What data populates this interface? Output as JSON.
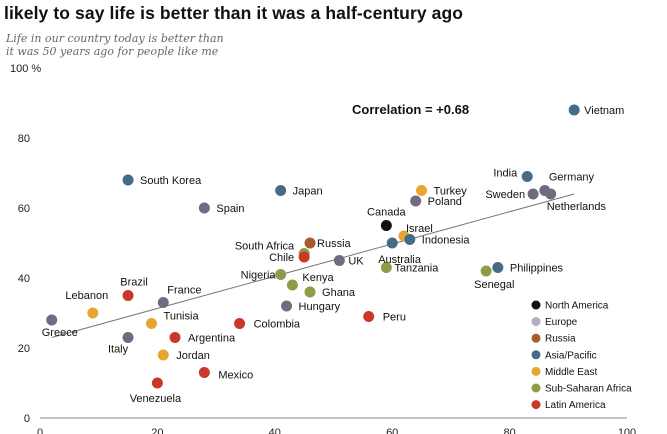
{
  "header": {
    "title": "likely to say life is better than it was a half-century ago",
    "subtitle_line1": "Life in our country today is better than",
    "subtitle_line2": "it was 50 years ago for people like me"
  },
  "chart_data": {
    "type": "scatter",
    "title": "likely to say life is better than it was a half-century ago",
    "ylabel": "Life in our country today is better than it was 50 years ago for people like me",
    "xlabel": "",
    "xlim": [
      0,
      100
    ],
    "ylim": [
      0,
      100
    ],
    "x_ticks": [
      0,
      20,
      40,
      60,
      80,
      100
    ],
    "y_ticks": [
      0,
      20,
      40,
      60,
      80,
      100
    ],
    "y_tick_labels": [
      "0",
      "20",
      "40",
      "60",
      "80",
      "100 %"
    ],
    "grid": false,
    "annotation": "Correlation = +0.68",
    "trendline": {
      "x": [
        2,
        91
      ],
      "y": [
        23,
        64
      ]
    },
    "legend_position": "bottom-right",
    "regions": [
      {
        "name": "North America",
        "color": "#111111"
      },
      {
        "name": "Europe",
        "color": "#b3aebf"
      },
      {
        "name": "Russia",
        "color": "#a95a2a"
      },
      {
        "name": "Asia/Pacific",
        "color": "#466b87"
      },
      {
        "name": "Middle East",
        "color": "#e8a631"
      },
      {
        "name": "Sub-Saharan Africa",
        "color": "#8e9c48"
      },
      {
        "name": "Latin America",
        "color": "#c9382b"
      }
    ],
    "europe_point_color": "#736a80",
    "points": [
      {
        "name": "Vietnam",
        "region": "Asia/Pacific",
        "x": 91,
        "y": 88
      },
      {
        "name": "South Korea",
        "region": "Asia/Pacific",
        "x": 15,
        "y": 68
      },
      {
        "name": "Japan",
        "region": "Asia/Pacific",
        "x": 41,
        "y": 65
      },
      {
        "name": "Spain",
        "region": "Europe",
        "x": 28,
        "y": 60
      },
      {
        "name": "India",
        "region": "Asia/Pacific",
        "x": 83,
        "y": 69
      },
      {
        "name": "Germany",
        "region": "Europe",
        "x": 86,
        "y": 65
      },
      {
        "name": "Sweden",
        "region": "Europe",
        "x": 84,
        "y": 64
      },
      {
        "name": "Netherlands",
        "region": "Europe",
        "x": 87,
        "y": 64
      },
      {
        "name": "Turkey",
        "region": "Middle East",
        "x": 65,
        "y": 65
      },
      {
        "name": "Poland",
        "region": "Europe",
        "x": 64,
        "y": 62
      },
      {
        "name": "Canada",
        "region": "North America",
        "x": 59,
        "y": 55
      },
      {
        "name": "Israel",
        "region": "Middle East",
        "x": 62,
        "y": 52
      },
      {
        "name": "Indonesia",
        "region": "Asia/Pacific",
        "x": 63,
        "y": 51
      },
      {
        "name": "Australia",
        "region": "Asia/Pacific",
        "x": 60,
        "y": 50
      },
      {
        "name": "Russia",
        "region": "Russia",
        "x": 46,
        "y": 50
      },
      {
        "name": "South Africa",
        "region": "Sub-Saharan Africa",
        "x": 45,
        "y": 47
      },
      {
        "name": "Chile",
        "region": "Latin America",
        "x": 45,
        "y": 46
      },
      {
        "name": "UK",
        "region": "Europe",
        "x": 51,
        "y": 45
      },
      {
        "name": "Tanzania",
        "region": "Sub-Saharan Africa",
        "x": 59,
        "y": 43
      },
      {
        "name": "Philippines",
        "region": "Asia/Pacific",
        "x": 78,
        "y": 43
      },
      {
        "name": "Senegal",
        "region": "Sub-Saharan Africa",
        "x": 76,
        "y": 42
      },
      {
        "name": "Nigeria",
        "region": "Sub-Saharan Africa",
        "x": 41,
        "y": 41
      },
      {
        "name": "Kenya",
        "region": "Sub-Saharan Africa",
        "x": 43,
        "y": 38
      },
      {
        "name": "Ghana",
        "region": "Sub-Saharan Africa",
        "x": 46,
        "y": 36
      },
      {
        "name": "Hungary",
        "region": "Europe",
        "x": 42,
        "y": 32
      },
      {
        "name": "Peru",
        "region": "Latin America",
        "x": 56,
        "y": 29
      },
      {
        "name": "Colombia",
        "region": "Latin America",
        "x": 34,
        "y": 27
      },
      {
        "name": "Brazil",
        "region": "Latin America",
        "x": 15,
        "y": 35
      },
      {
        "name": "France",
        "region": "Europe",
        "x": 21,
        "y": 33
      },
      {
        "name": "Lebanon",
        "region": "Middle East",
        "x": 9,
        "y": 30
      },
      {
        "name": "Greece",
        "region": "Europe",
        "x": 2,
        "y": 28
      },
      {
        "name": "Tunisia",
        "region": "Middle East",
        "x": 19,
        "y": 27
      },
      {
        "name": "Italy",
        "region": "Europe",
        "x": 15,
        "y": 23
      },
      {
        "name": "Argentina",
        "region": "Latin America",
        "x": 23,
        "y": 23
      },
      {
        "name": "Jordan",
        "region": "Middle East",
        "x": 21,
        "y": 18
      },
      {
        "name": "Mexico",
        "region": "Latin America",
        "x": 28,
        "y": 13
      },
      {
        "name": "Venezuela",
        "region": "Latin America",
        "x": 20,
        "y": 10
      }
    ]
  }
}
